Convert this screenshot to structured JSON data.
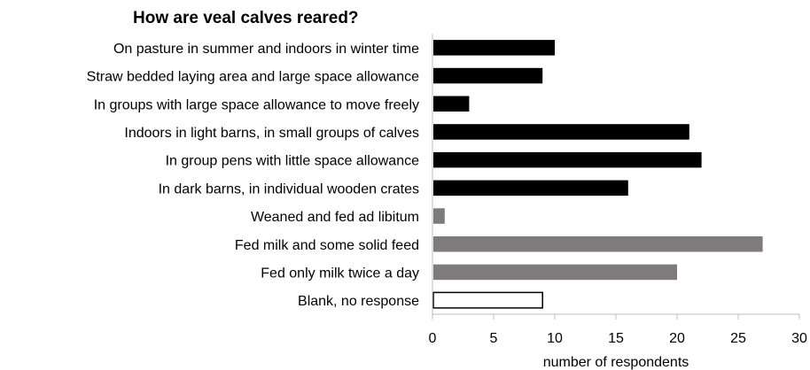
{
  "chart_data": {
    "type": "bar",
    "orientation": "horizontal",
    "title": "How are veal calves reared?",
    "xlabel": "number of respondents",
    "ylabel": "",
    "xlim": [
      0,
      30
    ],
    "xticks": [
      "0",
      "5",
      "10",
      "15",
      "20",
      "25",
      "30"
    ],
    "grid": false,
    "categories": [
      "On pasture in summer and indoors in winter time",
      "Straw bedded laying area and large space allowance",
      "In groups with large space allowance to move freely",
      "Indoors in light barns, in small groups of calves",
      "In group pens with little space allowance",
      "In dark barns, in individual wooden crates",
      "Weaned and fed ad libitum",
      "Fed milk and some solid feed",
      "Fed only milk twice a day",
      "Blank, no response"
    ],
    "values": [
      10,
      9,
      3,
      21,
      22,
      16,
      1,
      27,
      20,
      9
    ],
    "bar_styles": [
      {
        "fill": "#000000",
        "stroke": "#000000"
      },
      {
        "fill": "#000000",
        "stroke": "#000000"
      },
      {
        "fill": "#000000",
        "stroke": "#000000"
      },
      {
        "fill": "#000000",
        "stroke": "#000000"
      },
      {
        "fill": "#000000",
        "stroke": "#000000"
      },
      {
        "fill": "#000000",
        "stroke": "#000000"
      },
      {
        "fill": "#7f7b7b",
        "stroke": "#7f7b7b"
      },
      {
        "fill": "#7f7b7b",
        "stroke": "#7f7b7b"
      },
      {
        "fill": "#7f7b7b",
        "stroke": "#7f7b7b"
      },
      {
        "fill": "#ffffff",
        "stroke": "#000000"
      }
    ]
  }
}
